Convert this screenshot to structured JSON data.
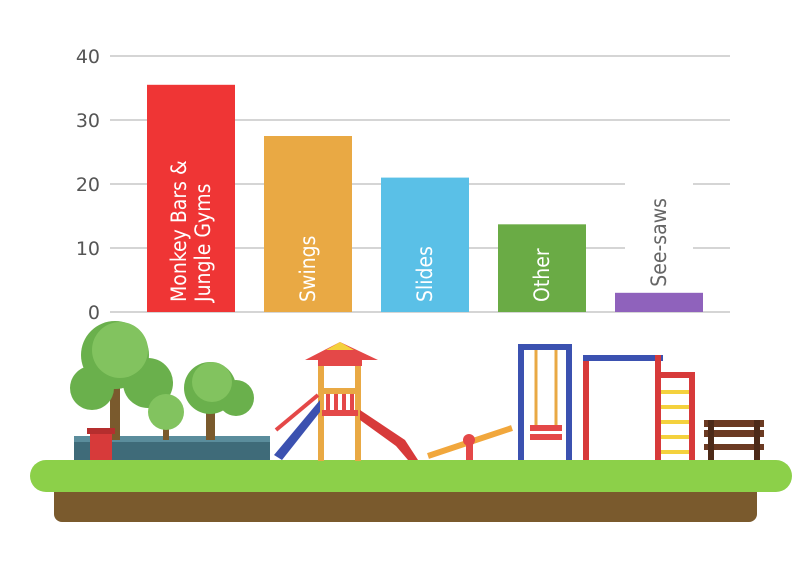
{
  "chart_data": {
    "type": "bar",
    "title": "",
    "xlabel": "",
    "ylabel": "",
    "ylim": [
      0,
      40
    ],
    "yticks": [
      0,
      10,
      20,
      30,
      40
    ],
    "grid": true,
    "categories": [
      "Monkey Bars & Jungle Gyms",
      "Swings",
      "Slides",
      "Other",
      "See-saws"
    ],
    "category_lines": [
      [
        "Monkey Bars &",
        "Jungle Gyms"
      ],
      [
        "Swings"
      ],
      [
        "Slides"
      ],
      [
        "Other"
      ],
      [
        "See-saws"
      ]
    ],
    "values": [
      35.5,
      27.5,
      21,
      13.7,
      3
    ],
    "colors": [
      "#ef3535",
      "#e9a944",
      "#5ac0e7",
      "#6aab45",
      "#8f62bc"
    ],
    "label_placement": [
      "inside",
      "inside",
      "inside",
      "inside",
      "above"
    ]
  },
  "colors": {
    "grid": "#c7c7c7",
    "grass": "#8cd049",
    "soil": "#7a5a2d"
  },
  "illustration": {
    "name": "playground-scene"
  }
}
